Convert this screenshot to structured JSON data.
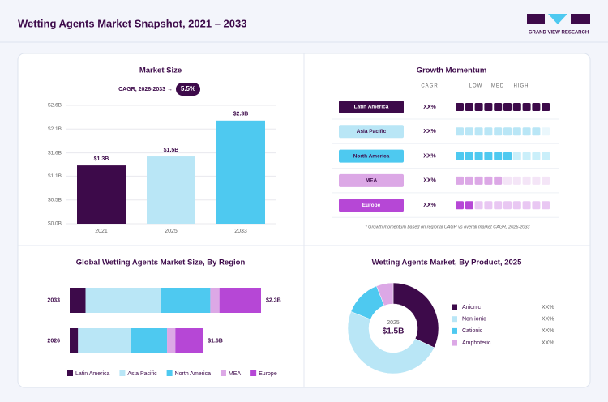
{
  "header": {
    "title": "Wetting Agents Market Snapshot, 2021 – 2033",
    "brand": "GRAND VIEW RESEARCH"
  },
  "chart_data": [
    {
      "type": "bar",
      "title": "Market Size",
      "cagr_label": "CAGR, 2026-2033 →",
      "cagr": "5.5%",
      "categories": [
        "2021",
        "2025",
        "2033"
      ],
      "values": [
        1.3,
        1.5,
        2.3
      ],
      "value_labels": [
        "$1.3B",
        "$1.5B",
        "$2.3B"
      ],
      "colors": [
        "#3d0a4a",
        "#b9e6f6",
        "#4ec9f0"
      ],
      "ylim": [
        0,
        2.64
      ],
      "yticks": [
        {
          "value": 0,
          "label": "$0.0B"
        },
        {
          "value": 0.53,
          "label": "$0.5B"
        },
        {
          "value": 1.06,
          "label": "$1.1B"
        },
        {
          "value": 1.58,
          "label": "$1.6B"
        },
        {
          "value": 2.11,
          "label": "$2.1B"
        },
        {
          "value": 2.64,
          "label": "$2.6B"
        }
      ],
      "grid": true
    },
    {
      "type": "barh",
      "title": "Global Wetting Agents Market Size, By Region",
      "categories": [
        "2033",
        "2026"
      ],
      "series": [
        {
          "name": "Latin America",
          "color": "#3d0a4a",
          "values": [
            0.19,
            0.1
          ]
        },
        {
          "name": "Asia Pacific",
          "color": "#b9e6f6",
          "values": [
            0.91,
            0.64
          ]
        },
        {
          "name": "North America",
          "color": "#4ec9f0",
          "values": [
            0.59,
            0.43
          ]
        },
        {
          "name": "MEA",
          "color": "#dca8e6",
          "values": [
            0.11,
            0.1
          ]
        },
        {
          "name": "Europe",
          "color": "#b647d6",
          "values": [
            0.5,
            0.33
          ]
        }
      ],
      "totals": [
        2.3,
        1.6
      ],
      "total_labels": [
        "$2.3B",
        "$1.6B"
      ],
      "xlim": [
        0,
        2.3
      ],
      "legend": "bottom"
    },
    {
      "type": "donut",
      "title": "Wetting Agents Market, By Product, 2025",
      "center_label": "2025",
      "center_value": "$1.5B",
      "categories": [
        "Anionic",
        "Non-ionic",
        "Cationic",
        "Amphoteric"
      ],
      "values": [
        32,
        49,
        13,
        6
      ],
      "colors": [
        "#3d0a4a",
        "#b9e6f6",
        "#4ec9f0",
        "#dca8e6"
      ],
      "legend_labels": [
        "XX%",
        "XX%",
        "XX%",
        "XX%"
      ]
    }
  ],
  "growth": {
    "title": "Growth Momentum",
    "columns": [
      "CAGR",
      "LOW",
      "MED",
      "HIGH"
    ],
    "scale": [
      0,
      10
    ],
    "rows": [
      {
        "region": "Latin America",
        "cagr": "XX%",
        "level": 10,
        "color": "#3d0a4a",
        "text_color": "#ffffff"
      },
      {
        "region": "Asia Pacific",
        "cagr": "XX%",
        "level": 9,
        "color": "#b9e6f6",
        "text_color": "#3d0a4a"
      },
      {
        "region": "North America",
        "cagr": "XX%",
        "level": 6,
        "color": "#4ec9f0",
        "text_color": "#3d0a4a"
      },
      {
        "region": "MEA",
        "cagr": "XX%",
        "level": 5,
        "color": "#dca8e6",
        "text_color": "#3d0a4a"
      },
      {
        "region": "Europe",
        "cagr": "XX%",
        "level": 2,
        "color": "#b647d6",
        "text_color": "#ffffff"
      }
    ],
    "note": "* Growth momentum based on regional CAGR vs overall market CAGR, 2026-2033"
  }
}
